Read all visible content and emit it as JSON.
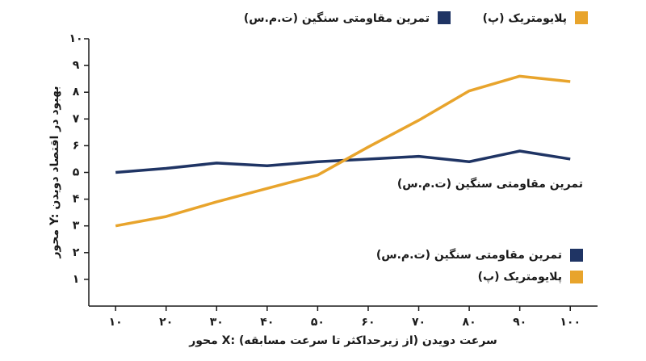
{
  "chart_data": {
    "type": "line",
    "x_label": "محور X: سرعت دویدن (از زیرحداکثر تا سرعت مسابقه)",
    "y_label": "محور Y: بهبود در اقتصاد دویدن",
    "annotation": "تمرین مقاومتی سنگین (ت.م.س)",
    "x": [
      10,
      20,
      30,
      40,
      50,
      60,
      70,
      80,
      90,
      100
    ],
    "series": [
      {
        "name": "تمرین مقاومتی سنگین (ت.م.س)",
        "color": "#1f3464",
        "values": [
          5.0,
          5.15,
          5.35,
          5.25,
          5.4,
          5.5,
          5.6,
          5.4,
          5.8,
          5.5
        ]
      },
      {
        "name": "پلایومتریک (پ)",
        "color": "#e8a42c",
        "values": [
          3.0,
          3.35,
          3.9,
          4.4,
          4.9,
          5.95,
          6.95,
          8.05,
          8.6,
          8.4
        ]
      }
    ],
    "xlim": [
      4.7,
      105.4
    ],
    "ylim": [
      0,
      10
    ],
    "xticks": [
      {
        "value": 10,
        "label": "۱۰"
      },
      {
        "value": 20,
        "label": "۲۰"
      },
      {
        "value": 30,
        "label": "۳۰"
      },
      {
        "value": 40,
        "label": "۴۰"
      },
      {
        "value": 50,
        "label": "۵۰"
      },
      {
        "value": 60,
        "label": "۶۰"
      },
      {
        "value": 70,
        "label": "۷۰"
      },
      {
        "value": 80,
        "label": "۸۰"
      },
      {
        "value": 90,
        "label": "۹۰"
      },
      {
        "value": 100,
        "label": "۱۰۰"
      }
    ],
    "yticks": [
      {
        "value": 1,
        "label": "۱"
      },
      {
        "value": 2,
        "label": "۲"
      },
      {
        "value": 3,
        "label": "۳"
      },
      {
        "value": 4,
        "label": "۴"
      },
      {
        "value": 5,
        "label": "۵"
      },
      {
        "value": 6,
        "label": "۶"
      },
      {
        "value": 7,
        "label": "۷"
      },
      {
        "value": 8,
        "label": "۸"
      },
      {
        "value": 9,
        "label": "۹"
      },
      {
        "value": 10,
        "label": "۱۰"
      }
    ]
  }
}
